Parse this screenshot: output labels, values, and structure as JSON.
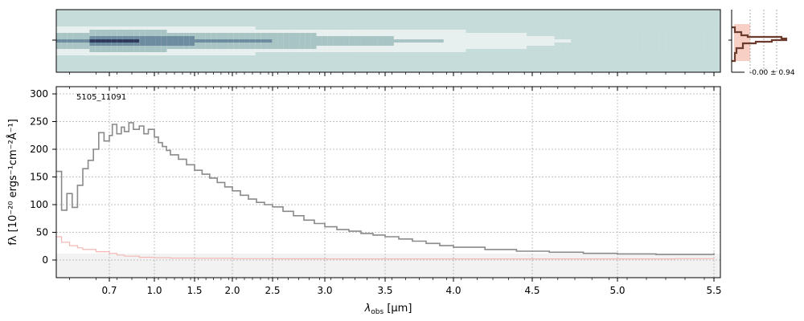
{
  "chart_data": [
    {
      "type": "heatmap",
      "panel": "2d-spectrum",
      "colormap": [
        "#c6dcda",
        "#e8f0ef",
        "#a8c4c4",
        "#6e8ca0",
        "#2e3a5c"
      ],
      "trace_rows": 9,
      "description_free": true
    },
    {
      "type": "line",
      "panel": "spectrum",
      "id_label": "5105_11091",
      "xlabel_main": "λ",
      "xlabel_sub": "obs",
      "xlabel_unit": " [μm]",
      "ylabel": "fλ [10⁻²⁰ ergs⁻¹cm⁻²Å⁻¹]",
      "ylim": [
        -30,
        312
      ],
      "yticks": [
        0,
        50,
        100,
        150,
        200,
        250,
        300
      ],
      "xscale": "compressed-blue",
      "xlim": [
        0.5,
        5.52
      ],
      "xticks": [
        0.7,
        1.0,
        1.5,
        2.0,
        2.5,
        3.0,
        3.5,
        4.0,
        4.5,
        5.0,
        5.5
      ],
      "xtick_labels": [
        "0.7",
        "1.0",
        "1.5",
        "2.0",
        "2.5",
        "3.0",
        "3.5",
        "4.0",
        "4.5",
        "5.0",
        "5.5"
      ],
      "grid": true,
      "series": [
        {
          "role": "flux",
          "color": "#8a8a8a",
          "x": [
            0.5,
            0.52,
            0.54,
            0.56,
            0.58,
            0.6,
            0.62,
            0.64,
            0.66,
            0.68,
            0.7,
            0.72,
            0.75,
            0.78,
            0.8,
            0.83,
            0.86,
            0.9,
            0.93,
            0.96,
            1.0,
            1.05,
            1.1,
            1.15,
            1.2,
            1.3,
            1.4,
            1.5,
            1.6,
            1.7,
            1.8,
            1.9,
            2.0,
            2.1,
            2.2,
            2.3,
            2.4,
            2.5,
            2.6,
            2.7,
            2.8,
            2.9,
            3.0,
            3.1,
            3.2,
            3.3,
            3.4,
            3.5,
            3.6,
            3.7,
            3.8,
            3.9,
            4.0,
            4.2,
            4.4,
            4.6,
            4.8,
            5.0,
            5.2,
            5.4,
            5.5
          ],
          "y": [
            160,
            90,
            120,
            95,
            135,
            165,
            180,
            200,
            230,
            215,
            225,
            245,
            228,
            240,
            232,
            248,
            236,
            242,
            228,
            236,
            222,
            212,
            205,
            198,
            190,
            182,
            172,
            162,
            155,
            148,
            140,
            132,
            125,
            117,
            110,
            104,
            100,
            96,
            88,
            80,
            72,
            66,
            60,
            55,
            52,
            48,
            45,
            42,
            38,
            34,
            30,
            26,
            23,
            19,
            16,
            14,
            12,
            11,
            10,
            10,
            12
          ]
        },
        {
          "role": "error",
          "color": "#f4b8b4",
          "x": [
            0.5,
            0.52,
            0.55,
            0.58,
            0.6,
            0.65,
            0.7,
            0.75,
            0.8,
            0.9,
            1.0,
            1.2,
            1.5,
            2.0,
            2.5,
            3.0,
            3.5,
            4.0,
            4.5,
            5.0,
            5.3,
            5.5
          ],
          "y": [
            42,
            32,
            26,
            22,
            19,
            15,
            12,
            9,
            7,
            5,
            4,
            3.5,
            3,
            2.5,
            2.2,
            2.0,
            2.0,
            2.0,
            2.0,
            2.0,
            2.5,
            4
          ]
        }
      ]
    },
    {
      "type": "line",
      "panel": "profile",
      "annotation": "-0.00 ± 0.94",
      "colors": {
        "profile": "#6b3b2e",
        "fill": "#f7cfc4",
        "guide": "#888888"
      }
    }
  ]
}
